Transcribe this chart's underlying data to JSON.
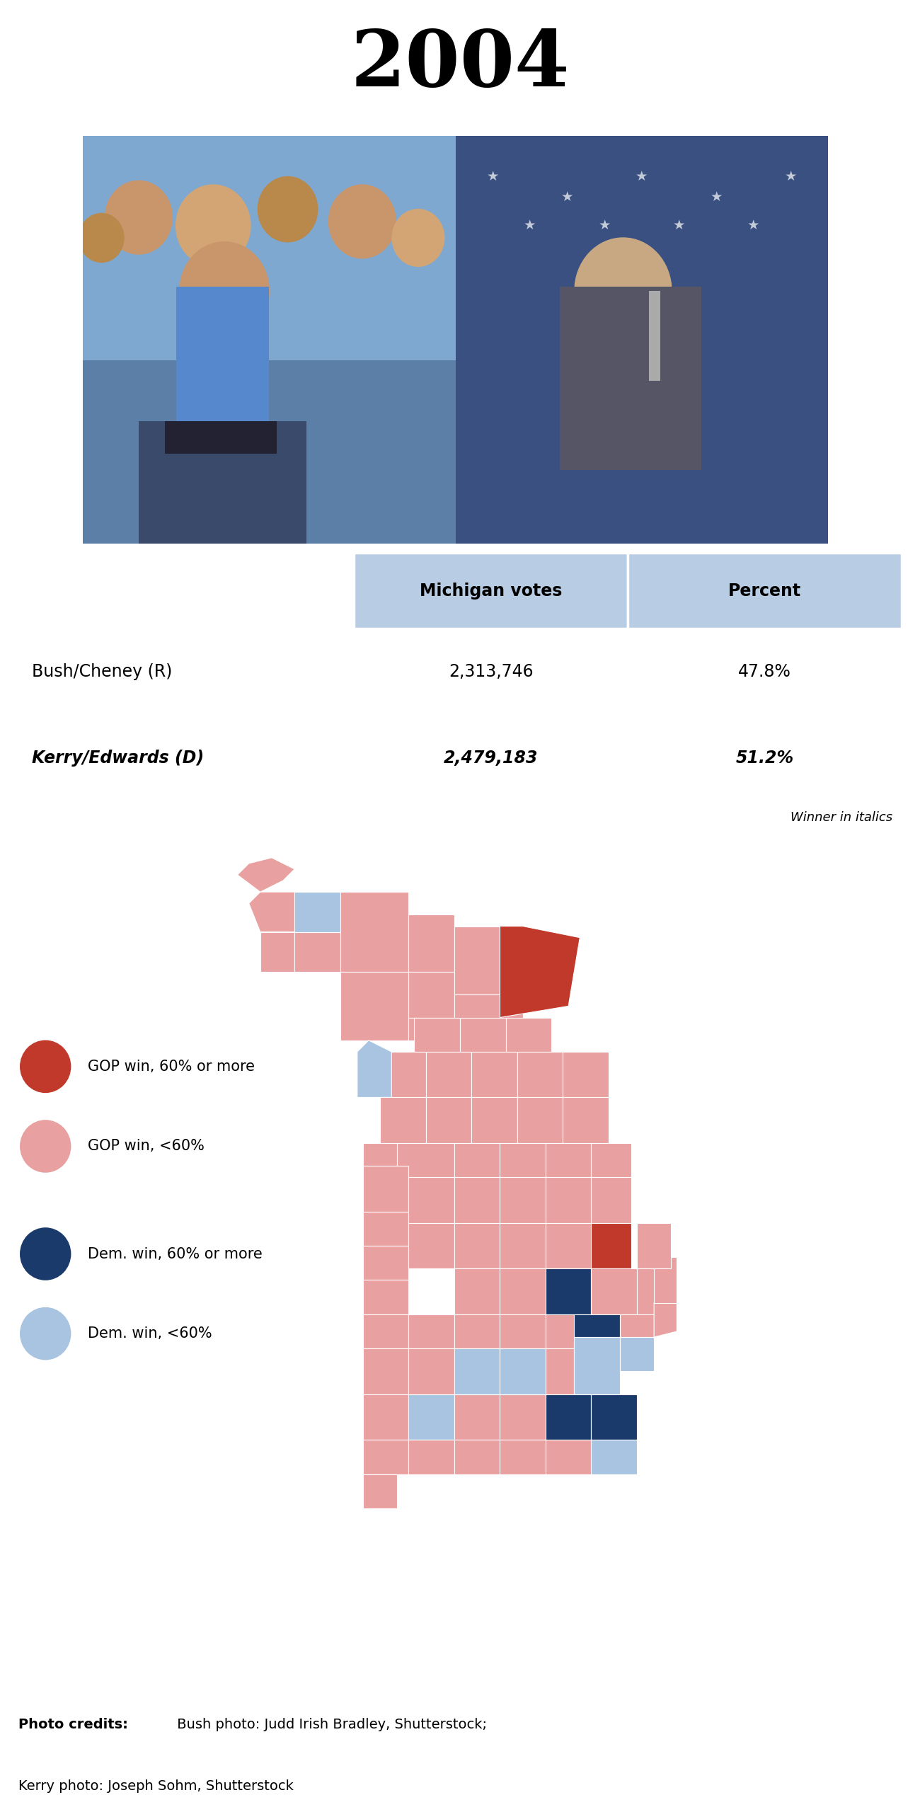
{
  "title": "2004",
  "title_fontsize": 80,
  "table_header_bg": "#b8cce4",
  "table_col1_header": "Michigan votes",
  "table_col2_header": "Percent",
  "candidates": [
    {
      "name": "Bush/Cheney (R)",
      "votes": "2,313,746",
      "pct": "47.8%",
      "bold": false,
      "italic": false
    },
    {
      "name": "Kerry/Edwards (D)",
      "votes": "2,479,183",
      "pct": "51.2%",
      "bold": true,
      "italic": true
    }
  ],
  "winner_note": "Winner in italics",
  "legend_items": [
    {
      "color": "#c0392b",
      "label": "GOP win, 60% or more"
    },
    {
      "color": "#e8a0a0",
      "label": "GOP win, <60%"
    },
    {
      "color": "#1a3a6b",
      "label": "Dem. win, 60% or more"
    },
    {
      "color": "#a8c4e0",
      "label": "Dem. win, <60%"
    }
  ],
  "credits_bold": "Photo credits:",
  "credits_line1_rest": " Bush photo: Judd Irish Bradley, Shutterstock;",
  "credits_line2": "Kerry photo: Joseph Sohm, Shutterstock",
  "background_color": "#ffffff",
  "color_map": {
    "DR": "#c0392b",
    "LP": "#e8a0a0",
    "DB": "#1a3a6b",
    "LB": "#a8c4e0"
  }
}
